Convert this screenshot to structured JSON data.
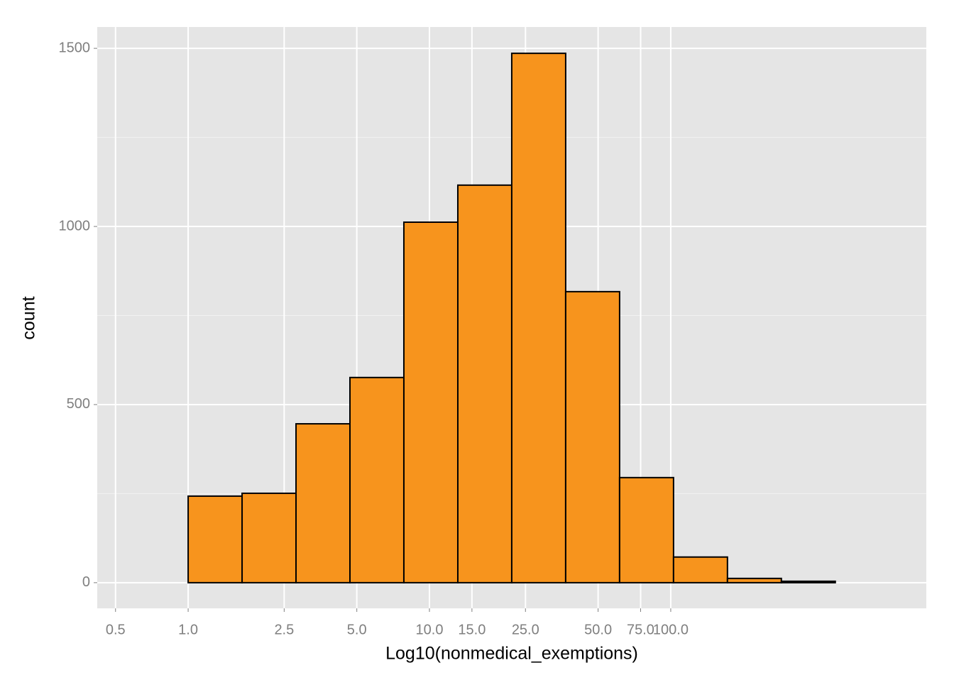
{
  "chart_data": {
    "type": "histogram",
    "x_label": "Log10(nonmedical_exemptions)",
    "y_label": "count",
    "bins": [
      0.598,
      1,
      1.673,
      2.799,
      4.683,
      7.834,
      13.11,
      21.93,
      36.69,
      61.38,
      102.7,
      171.8,
      287.4,
      480.8,
      804.4
    ],
    "values": [
      0,
      243,
      251,
      446,
      576,
      1012,
      1116,
      1486,
      817,
      295,
      72,
      12,
      4,
      0
    ],
    "color": "#f7941d",
    "edge_color": "#000000",
    "xscale": "log",
    "xlim": [
      0.42,
      1146
    ],
    "ylim": [
      -72,
      1560
    ],
    "xticks": [
      0.5,
      {
        "value": 1,
        "label": "1.0"
      },
      2.5,
      {
        "value": 5,
        "label": "5.0"
      },
      {
        "value": 10,
        "label": "10.0"
      },
      {
        "value": 15,
        "label": "15.0"
      },
      {
        "value": 25,
        "label": "25.0"
      },
      {
        "value": 50,
        "label": "50.0"
      },
      {
        "value": 75,
        "label": "75.0"
      },
      {
        "value": 100,
        "label": "100.0"
      }
    ],
    "yticks": [
      0,
      500,
      1000,
      1500
    ],
    "yminor_ticks": [
      250,
      750,
      1250
    ],
    "grid": true
  }
}
